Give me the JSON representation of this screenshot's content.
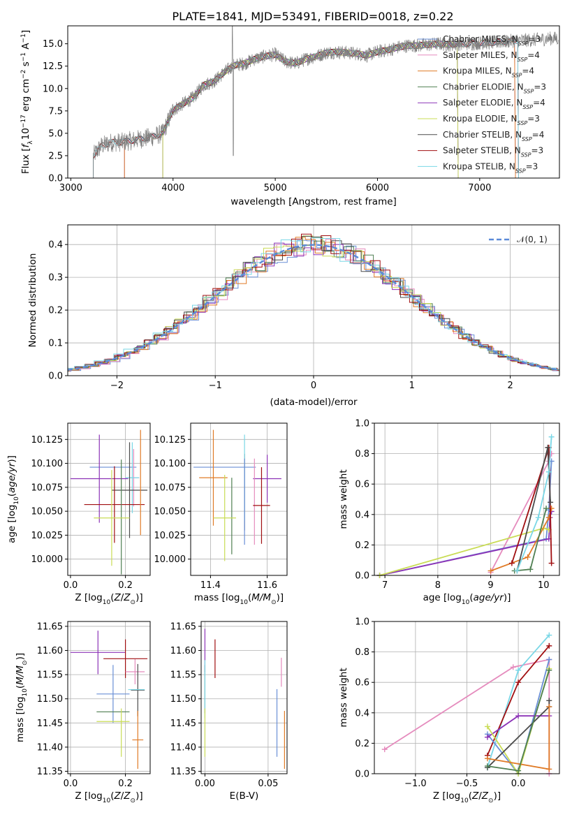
{
  "figure_title": "PLATE=1841, MJD=53491, FIBERID=0018, z=0.22",
  "colors": [
    "#6a8fd6",
    "#e58bbd",
    "#e07b27",
    "#4f7f52",
    "#8c33b7",
    "#c9dc55",
    "#4b4b4b",
    "#a00e10",
    "#7ad7e6"
  ],
  "chart_data": [
    {
      "type": "line",
      "title": "PLATE=1841, MJD=53491, FIBERID=0018, z=0.22",
      "xlabel": "wavelength [Angstrom, rest frame]",
      "ylabel": "Flux [f_λ 10^-17 erg cm^-2 s^-1 A^-1]",
      "xlim": [
        2970,
        7780
      ],
      "ylim": [
        0,
        17
      ],
      "xticks": [
        3000,
        4000,
        5000,
        6000,
        7000
      ],
      "yticks": [
        0.0,
        2.5,
        5.0,
        7.5,
        10.0,
        12.5,
        15.0
      ],
      "grid": false,
      "legend_position": "right",
      "data_color": "#808080",
      "data_points": [
        [
          3220,
          2.5
        ],
        [
          3300,
          3.6
        ],
        [
          3400,
          4.0
        ],
        [
          3500,
          4.0
        ],
        [
          3600,
          4.2
        ],
        [
          3700,
          4.4
        ],
        [
          3800,
          4.6
        ],
        [
          3900,
          5.0
        ],
        [
          4000,
          7.6
        ],
        [
          4100,
          8.3
        ],
        [
          4200,
          9.0
        ],
        [
          4300,
          10.4
        ],
        [
          4400,
          10.8
        ],
        [
          4500,
          11.8
        ],
        [
          4600,
          12.6
        ],
        [
          4700,
          12.8
        ],
        [
          4800,
          13.3
        ],
        [
          4900,
          13.6
        ],
        [
          5000,
          13.8
        ],
        [
          5100,
          13.0
        ],
        [
          5200,
          12.8
        ],
        [
          5300,
          13.3
        ],
        [
          5400,
          13.6
        ],
        [
          5500,
          14.0
        ],
        [
          5600,
          14.1
        ],
        [
          5700,
          14.0
        ],
        [
          5800,
          13.9
        ],
        [
          5900,
          13.7
        ],
        [
          6000,
          14.1
        ],
        [
          6100,
          14.3
        ],
        [
          6200,
          14.6
        ],
        [
          6300,
          14.8
        ],
        [
          6400,
          14.8
        ],
        [
          6500,
          14.9
        ],
        [
          6600,
          15.0
        ],
        [
          6700,
          14.9
        ],
        [
          6800,
          15.0
        ],
        [
          6900,
          15.0
        ],
        [
          7000,
          15.1
        ],
        [
          7100,
          15.1
        ],
        [
          7200,
          15.2
        ],
        [
          7300,
          15.3
        ],
        [
          7400,
          15.4
        ],
        [
          7500,
          15.4
        ],
        [
          7600,
          15.5
        ],
        [
          7700,
          15.6
        ],
        [
          7770,
          15.6
        ]
      ],
      "series": [
        {
          "name": "Chabrier MILES",
          "nssp": "3",
          "color": "#6a8fd6",
          "x_range": [
            3525,
            7350
          ]
        },
        {
          "name": "Salpeter MILES",
          "nssp": "4",
          "color": "#e58bbd",
          "x_range": [
            3525,
            7350
          ]
        },
        {
          "name": "Kroupa MILES",
          "nssp": "4",
          "color": "#e07b27",
          "x_range": [
            3525,
            7350
          ]
        },
        {
          "name": "Chabrier ELODIE",
          "nssp": "3",
          "color": "#4f7f52",
          "x_range": [
            3900,
            6790
          ]
        },
        {
          "name": "Salpeter ELODIE",
          "nssp": "4",
          "color": "#8c33b7",
          "x_range": [
            3900,
            6790
          ]
        },
        {
          "name": "Kroupa ELODIE",
          "nssp": "3",
          "color": "#c9dc55",
          "x_range": [
            3900,
            6790
          ]
        },
        {
          "name": "Chabrier STELIB",
          "nssp": "4",
          "color": "#4b4b4b",
          "x_range": [
            3220,
            7380
          ]
        },
        {
          "name": "Salpeter STELIB",
          "nssp": "3",
          "color": "#a00e10",
          "x_range": [
            3220,
            7380
          ]
        },
        {
          "name": "Kroupa STELIB",
          "nssp": "3",
          "color": "#7ad7e6",
          "x_range": [
            3220,
            7380
          ]
        }
      ]
    },
    {
      "type": "line",
      "xlabel": "(data-model)/error",
      "ylabel": "Normed distribution",
      "xlim": [
        -2.5,
        2.5
      ],
      "ylim": [
        0,
        0.46
      ],
      "xticks": [
        -2,
        -1,
        0,
        1,
        2
      ],
      "yticks": [
        0.0,
        0.1,
        0.2,
        0.3,
        0.4
      ],
      "grid": true,
      "legend_position": "top-right",
      "reference_curve": {
        "name": "N(0,1)",
        "color": "#5b8ad8"
      },
      "bin_width": 0.1,
      "series_hist_colors": [
        "#6a8fd6",
        "#e58bbd",
        "#e07b27",
        "#4f7f52",
        "#8c33b7",
        "#c9dc55",
        "#4b4b4b",
        "#a00e10",
        "#7ad7e6"
      ]
    },
    {
      "type": "scatter",
      "xlabel": "Z [log10(Z/Z_sun)]",
      "ylabel": "age [log10(age/yr)]",
      "xlim": [
        -0.01,
        0.29
      ],
      "ylim": [
        9.983,
        10.142
      ],
      "xticks": [
        0.0,
        0.2
      ],
      "yticks": [
        10.0,
        10.025,
        10.05,
        10.075,
        10.1,
        10.125
      ],
      "grid": true,
      "points": [
        {
          "color": "#6a8fd6",
          "x": 0.155,
          "xerr": 0.085,
          "y": 10.096,
          "yerr": 0.0
        },
        {
          "color": "#8c33b7",
          "x": 0.105,
          "xerr": 0.105,
          "y": 10.084,
          "yerr": 0.046
        },
        {
          "color": "#e58bbd",
          "x": 0.23,
          "xerr": 0.02,
          "y": 10.085,
          "yerr": 0.03
        },
        {
          "color": "#7ad7e6",
          "x": 0.225,
          "xerr": 0.025,
          "y": 10.085,
          "yerr": 0.037
        },
        {
          "color": "#4b4b4b",
          "x": 0.215,
          "xerr": 0.065,
          "y": 10.072,
          "yerr": 0.05
        },
        {
          "color": "#a00e10",
          "x": 0.16,
          "xerr": 0.11,
          "y": 10.057,
          "yerr": 0.04
        },
        {
          "color": "#4f7f52",
          "x": 0.185,
          "xerr": 0.0,
          "y": 10.044,
          "yerr": 0.06
        },
        {
          "color": "#c9dc55",
          "x": 0.15,
          "xerr": 0.065,
          "y": 10.043,
          "yerr": 0.05
        },
        {
          "color": "#e07b27",
          "x": 0.255,
          "xerr": 0.0,
          "y": 10.08,
          "yerr": 0.055
        }
      ]
    },
    {
      "type": "scatter",
      "xlabel": "mass [log10(M/M_sun)]",
      "ylabel": "",
      "xlim": [
        11.33,
        11.67
      ],
      "ylim": [
        9.983,
        10.142
      ],
      "xticks": [
        11.4,
        11.6
      ],
      "yticks": [
        10.0,
        10.025,
        10.05,
        10.075,
        10.1,
        10.125
      ],
      "grid": true,
      "points": [
        {
          "color": "#6a8fd6",
          "x": 11.45,
          "xerr": 0.11,
          "y": 10.096,
          "yerr": 0.0
        },
        {
          "color": "#8c33b7",
          "x": 11.6,
          "xerr": 0.05,
          "y": 10.084,
          "yerr": 0.025
        },
        {
          "color": "#e07b27",
          "x": 11.41,
          "xerr": 0.05,
          "y": 10.085,
          "yerr": 0.05
        },
        {
          "color": "#e58bbd",
          "x": 11.555,
          "xerr": 0.0,
          "y": 10.06,
          "yerr": 0.045
        },
        {
          "color": "#4b4b4b",
          "x": 11.52,
          "xerr": 0.0,
          "y": 10.07,
          "yerr": 0.04
        },
        {
          "color": "#7ad7e6",
          "x": 11.52,
          "xerr": 0.0,
          "y": 10.085,
          "yerr": 0.045
        },
        {
          "color": "#a00e10",
          "x": 11.58,
          "xerr": 0.03,
          "y": 10.056,
          "yerr": 0.04
        },
        {
          "color": "#4f7f52",
          "x": 11.475,
          "xerr": 0.0,
          "y": 10.045,
          "yerr": 0.04
        },
        {
          "color": "#c9dc55",
          "x": 11.45,
          "xerr": 0.04,
          "y": 10.043,
          "yerr": 0.045
        },
        {
          "color": "#6a8fd6",
          "x": 11.52,
          "xerr": 0.0,
          "y": 10.06,
          "yerr": 0.045
        }
      ]
    },
    {
      "type": "line",
      "xlabel": "age [log10(age/yr)]",
      "ylabel": "mass weight",
      "xlim": [
        6.8,
        10.3
      ],
      "ylim": [
        0,
        1.0
      ],
      "xticks": [
        7,
        8,
        9,
        10
      ],
      "yticks": [
        0.0,
        0.2,
        0.4,
        0.6,
        0.8,
        1.0
      ],
      "grid": true,
      "series": [
        {
          "color": "#e58bbd",
          "x": [
            9.0,
            10.1,
            10.15
          ],
          "y": [
            0.02,
            0.75,
            0.8
          ]
        },
        {
          "color": "#6a8fd6",
          "x": [
            6.9,
            10.05,
            10.1,
            10.15
          ],
          "y": [
            0.0,
            0.24,
            0.43,
            0.75
          ]
        },
        {
          "color": "#8c33b7",
          "x": [
            6.9,
            10.1,
            10.12,
            10.15
          ],
          "y": [
            0.0,
            0.24,
            0.38,
            0.42
          ]
        },
        {
          "color": "#c9dc55",
          "x": [
            6.9,
            10.0,
            10.1
          ],
          "y": [
            0.0,
            0.31,
            0.3
          ]
        },
        {
          "color": "#e07b27",
          "x": [
            9.0,
            9.7,
            10.1,
            10.15
          ],
          "y": [
            0.03,
            0.12,
            0.38,
            0.44
          ]
        },
        {
          "color": "#a00e10",
          "x": [
            9.4,
            10.1,
            10.15
          ],
          "y": [
            0.08,
            0.84,
            0.08
          ]
        },
        {
          "color": "#4b4b4b",
          "x": [
            9.5,
            10.08,
            10.13
          ],
          "y": [
            0.03,
            0.84,
            0.48
          ]
        },
        {
          "color": "#4f7f52",
          "x": [
            9.45,
            9.75,
            10.05
          ],
          "y": [
            0.03,
            0.04,
            0.44
          ]
        },
        {
          "color": "#7ad7e6",
          "x": [
            9.5,
            9.9,
            10.1,
            10.15
          ],
          "y": [
            0.03,
            0.38,
            0.68,
            0.91
          ]
        }
      ]
    },
    {
      "type": "scatter",
      "xlabel": "Z [log10(Z/Z_sun)]",
      "ylabel": "mass [log10(M/M_sun)]",
      "xlim": [
        -0.01,
        0.29
      ],
      "ylim": [
        11.345,
        11.66
      ],
      "xticks": [
        0.0,
        0.2
      ],
      "yticks": [
        11.35,
        11.4,
        11.45,
        11.5,
        11.55,
        11.6,
        11.65
      ],
      "grid": true,
      "points": [
        {
          "color": "#8c33b7",
          "x": 0.1,
          "xerr": 0.1,
          "y": 11.596,
          "yerr": 0.045
        },
        {
          "color": "#a00e10",
          "x": 0.2,
          "xerr": 0.08,
          "y": 11.583,
          "yerr": 0.04
        },
        {
          "color": "#e58bbd",
          "x": 0.235,
          "xerr": 0.035,
          "y": 11.556,
          "yerr": 0.026
        },
        {
          "color": "#4b4b4b",
          "x": 0.245,
          "xerr": 0.025,
          "y": 11.518,
          "yerr": 0.054
        },
        {
          "color": "#7ad7e6",
          "x": 0.24,
          "xerr": 0.03,
          "y": 11.519,
          "yerr": 0.0
        },
        {
          "color": "#6a8fd6",
          "x": 0.155,
          "xerr": 0.06,
          "y": 11.51,
          "yerr": 0.06
        },
        {
          "color": "#4f7f52",
          "x": 0.155,
          "xerr": 0.06,
          "y": 11.473,
          "yerr": 0.0
        },
        {
          "color": "#c9dc55",
          "x": 0.155,
          "xerr": 0.06,
          "y": 11.453,
          "yerr": 0.0
        },
        {
          "color": "#c9dc55",
          "x": 0.185,
          "xerr": 0.0,
          "y": 11.43,
          "yerr": 0.05
        },
        {
          "color": "#e07b27",
          "x": 0.245,
          "xerr": 0.02,
          "y": 11.415,
          "yerr": 0.06
        }
      ]
    },
    {
      "type": "scatter",
      "xlabel": "E(B-V)",
      "ylabel": "",
      "xlim": [
        -0.003,
        0.065
      ],
      "ylim": [
        11.345,
        11.66
      ],
      "xticks": [
        0.0,
        0.05
      ],
      "yticks": [
        11.35,
        11.4,
        11.45,
        11.5,
        11.55,
        11.6,
        11.65
      ],
      "grid": true,
      "points": [
        {
          "color": "#8c33b7",
          "x": 0.0,
          "xerr": 0.0,
          "y": 11.6,
          "yerr": 0.045
        },
        {
          "color": "#a00e10",
          "x": 0.008,
          "xerr": 0.0,
          "y": 11.583,
          "yerr": 0.04
        },
        {
          "color": "#4b4b4b",
          "x": 0.0,
          "xerr": 0.0,
          "y": 11.52,
          "yerr": 0.05
        },
        {
          "color": "#7ad7e6",
          "x": 0.0,
          "xerr": 0.0,
          "y": 11.52,
          "yerr": 0.06
        },
        {
          "color": "#c9dc55",
          "x": 0.0,
          "xerr": 0.0,
          "y": 11.43,
          "yerr": 0.05
        },
        {
          "color": "#e58bbd",
          "x": 0.0605,
          "xerr": 0.0,
          "y": 11.555,
          "yerr": 0.03
        },
        {
          "color": "#6a8fd6",
          "x": 0.057,
          "xerr": 0.0,
          "y": 11.45,
          "yerr": 0.07
        },
        {
          "color": "#e07b27",
          "x": 0.063,
          "xerr": 0.0,
          "y": 11.415,
          "yerr": 0.06
        }
      ]
    },
    {
      "type": "line",
      "xlabel": "Z [log10(Z/Z_sun)]",
      "ylabel": "mass weight",
      "xlim": [
        -1.4,
        0.4
      ],
      "ylim": [
        0,
        1.0
      ],
      "xticks": [
        -1.0,
        -0.5,
        0.0
      ],
      "yticks": [
        0.0,
        0.2,
        0.4,
        0.6,
        0.8,
        1.0
      ],
      "grid": true,
      "series": [
        {
          "color": "#e58bbd",
          "x": [
            -1.3,
            -0.05,
            0.3,
            0.3
          ],
          "y": [
            0.16,
            0.7,
            0.75,
            0.0
          ]
        },
        {
          "color": "#7ad7e6",
          "x": [
            -0.3,
            0.0,
            0.3
          ],
          "y": [
            0.04,
            0.68,
            0.91
          ]
        },
        {
          "color": "#a00e10",
          "x": [
            -0.3,
            0.0,
            0.3
          ],
          "y": [
            0.12,
            0.6,
            0.84
          ]
        },
        {
          "color": "#6a8fd6",
          "x": [
            -0.3,
            0.0,
            0.3
          ],
          "y": [
            0.26,
            0.0,
            0.75
          ]
        },
        {
          "color": "#8c33b7",
          "x": [
            -0.3,
            0.0,
            0.3
          ],
          "y": [
            0.24,
            0.38,
            0.38
          ]
        },
        {
          "color": "#c9dc55",
          "x": [
            -0.3,
            0.0,
            0.3
          ],
          "y": [
            0.31,
            0.0,
            0.69
          ]
        },
        {
          "color": "#4b4b4b",
          "x": [
            -0.3,
            0.3,
            0.3
          ],
          "y": [
            0.04,
            0.44,
            0.48
          ]
        },
        {
          "color": "#e07b27",
          "x": [
            -0.3,
            0.3,
            0.3
          ],
          "y": [
            0.1,
            0.03,
            0.44
          ]
        },
        {
          "color": "#4f7f52",
          "x": [
            -0.3,
            0.0,
            0.3
          ],
          "y": [
            0.05,
            0.02,
            0.68
          ]
        }
      ]
    }
  ]
}
